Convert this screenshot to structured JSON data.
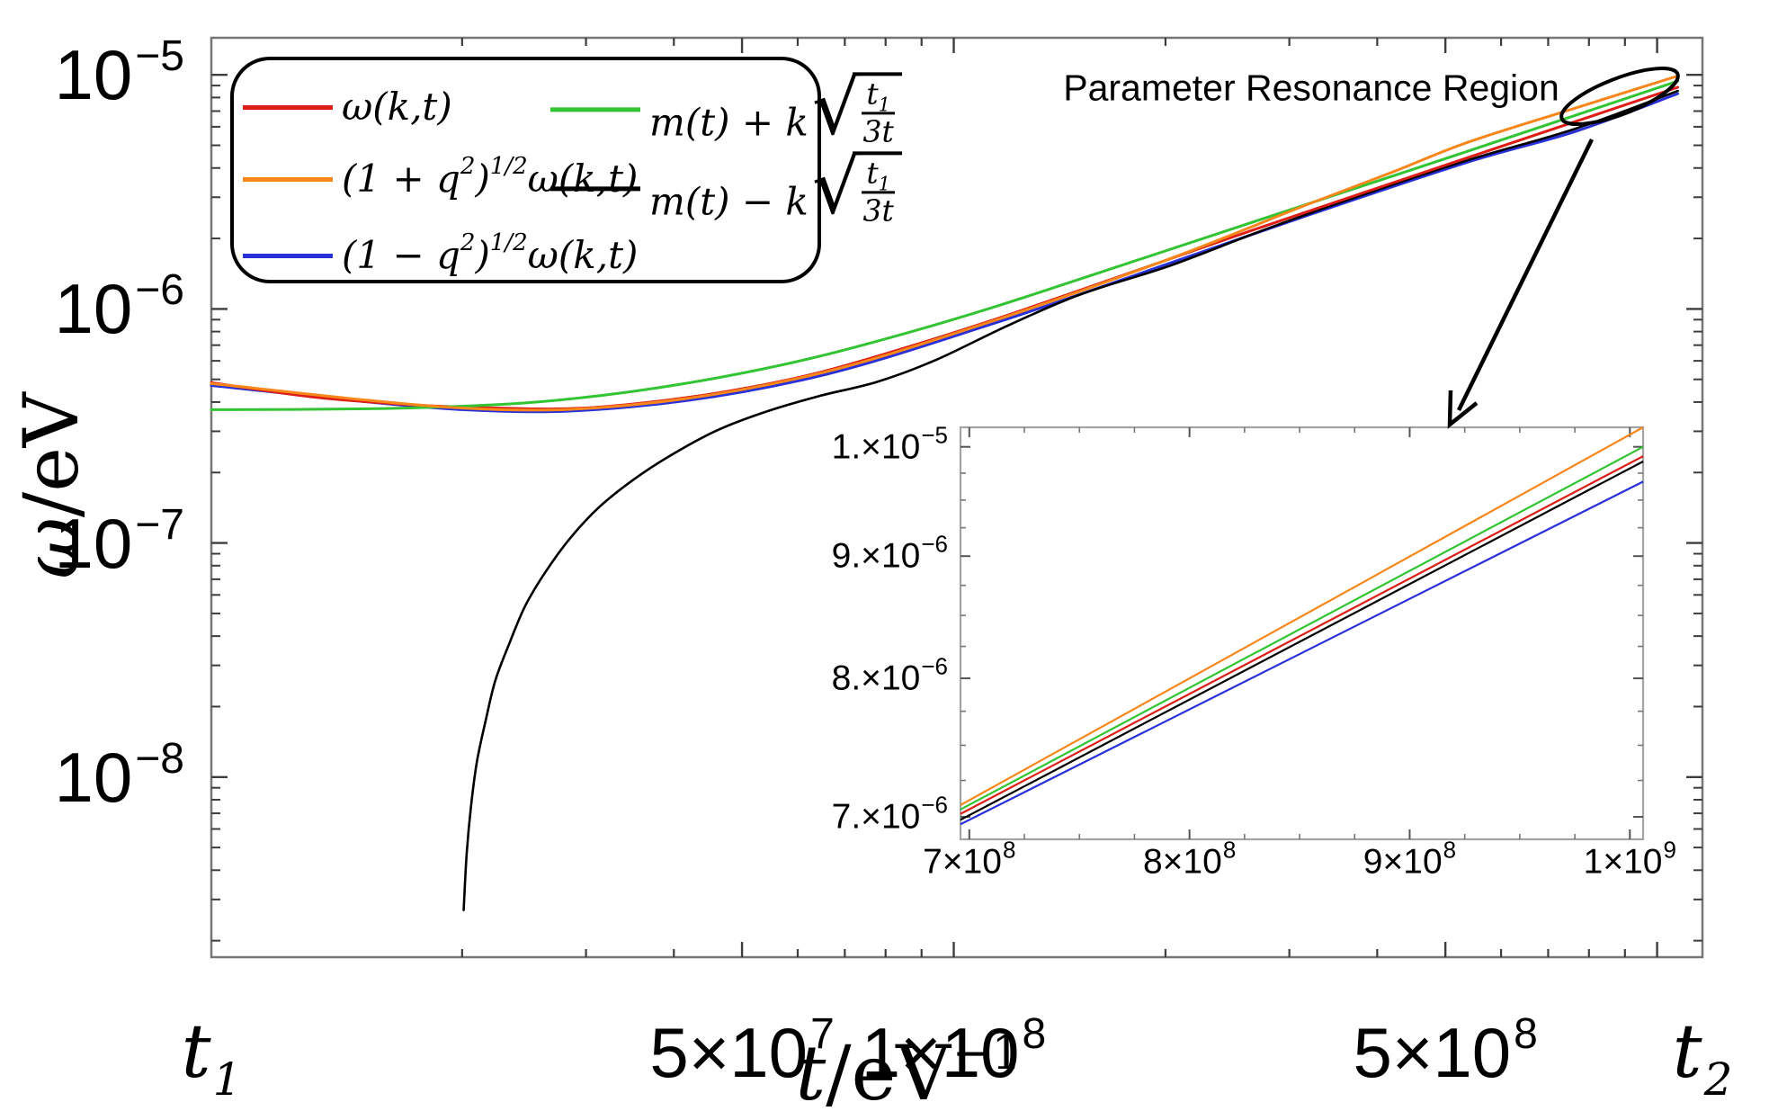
{
  "annotation": {
    "text": "Parameter Resonance Region"
  },
  "axes": {
    "x": {
      "sym": "t",
      "unit": "/eV",
      "sup": "−1"
    },
    "y": {
      "sym": "ω",
      "unit": "/eV"
    }
  },
  "colors": {
    "red": "#dc1e17",
    "orange": "#f8871b",
    "blue": "#2930d8",
    "green": "#33c433",
    "black": "#000000",
    "frame": "#777777",
    "tick": "#3d3d3d",
    "inset_frame": "#a3a3a3",
    "text": "#111111"
  },
  "legend": {
    "items": [
      {
        "name": "omega",
        "color_key": "red",
        "label": "ω(k,t)"
      },
      {
        "name": "omega-plus",
        "color_key": "orange",
        "open": "(1 + q",
        "exp": "2",
        "close": ")",
        "pow": "1/2",
        "tail": "ω(k,t)"
      },
      {
        "name": "omega-minus",
        "color_key": "blue",
        "open": "(1 − q",
        "exp": "2",
        "close": ")",
        "pow": "1/2",
        "tail": "ω(k,t)"
      },
      {
        "name": "m-plus",
        "color_key": "green",
        "pre": "m(t) + k",
        "num": "t",
        "numsub": "1",
        "den": "3t"
      },
      {
        "name": "m-minus",
        "color_key": "black",
        "pre": "m(t) − k",
        "num": "t",
        "numsub": "1",
        "den": "3t"
      }
    ]
  },
  "chart_data": {
    "type": "line",
    "title": "",
    "xlabel": "t/eV^-1",
    "ylabel": "ω/eV",
    "main": {
      "xscale": "log",
      "yscale": "log",
      "xlim": [
        8800000.0,
        1160000000.0
      ],
      "ylim": [
        1.7e-09,
        1.44e-05
      ],
      "xticks": [
        {
          "v": 8800000.0,
          "base": "t",
          "sub": "1",
          "serif": true
        },
        {
          "v": 50000000.0,
          "base": "5×10",
          "exp": "7"
        },
        {
          "v": 100000000.0,
          "base": "1×10",
          "exp": "8"
        },
        {
          "v": 500000000.0,
          "base": "5×10",
          "exp": "8"
        },
        {
          "v": 1160000000.0,
          "base": "t",
          "sub": "2",
          "serif": true
        }
      ],
      "yticks": [
        {
          "v": 1e-05,
          "base": "10",
          "exp": "−5"
        },
        {
          "v": 1e-06,
          "base": "10",
          "exp": "−6"
        },
        {
          "v": 1e-07,
          "base": "10",
          "exp": "−7"
        },
        {
          "v": 1e-08,
          "base": "10",
          "exp": "−8"
        }
      ],
      "series": [
        {
          "name": "omega",
          "color": "red",
          "points": [
            [
              8800000.0,
              4.84e-07
            ],
            [
              12300000.0,
              4.2e-07
            ],
            [
              16600000.0,
              3.91e-07
            ],
            [
              20000000.0,
              3.81e-07
            ],
            [
              27300000.0,
              3.74e-07
            ],
            [
              34600000.0,
              3.91e-07
            ],
            [
              46500000.0,
              4.39e-07
            ],
            [
              62500000.0,
              5.23e-07
            ],
            [
              83800000.0,
              6.71e-07
            ],
            [
              113000000.0,
              8.91e-07
            ],
            [
              151000000.0,
              1.2e-06
            ],
            [
              272000000.0,
              2.22e-06
            ],
            [
              537000000.0,
              4.42e-06
            ],
            [
              1070000000.0,
              8.85e-06
            ]
          ]
        },
        {
          "name": "omega-plus",
          "color": "orange",
          "points": [
            [
              8800000.0,
              4.8e-07
            ],
            [
              20000000.0,
              3.77e-07
            ],
            [
              34600000.0,
              3.88e-07
            ],
            [
              62500000.0,
              5.19e-07
            ],
            [
              113000000.0,
              8.83e-07
            ],
            [
              203000000.0,
              1.64e-06
            ],
            [
              316000000.0,
              2.77e-06
            ],
            [
              424000000.0,
              3.88e-06
            ],
            [
              537000000.0,
              5.14e-06
            ],
            [
              764000000.0,
              7.2e-06
            ],
            [
              1070000000.0,
              9.89e-06
            ]
          ]
        },
        {
          "name": "omega-minus",
          "color": "blue",
          "points": [
            [
              8800000.0,
              4.71e-07
            ],
            [
              20000000.0,
              3.71e-07
            ],
            [
              34600000.0,
              3.81e-07
            ],
            [
              62500000.0,
              5.06e-07
            ],
            [
              113000000.0,
              8.6e-07
            ],
            [
              203000000.0,
              1.57e-06
            ],
            [
              316000000.0,
              2.49e-06
            ],
            [
              537000000.0,
              4.23e-06
            ],
            [
              764000000.0,
              5.72e-06
            ],
            [
              1070000000.0,
              8.31e-06
            ]
          ]
        },
        {
          "name": "m-plus",
          "color": "green",
          "points": [
            [
              8800000.0,
              3.71e-07
            ],
            [
              14300000.0,
              3.74e-07
            ],
            [
              20000000.0,
              3.84e-07
            ],
            [
              25800000.0,
              4.01e-07
            ],
            [
              34600000.0,
              4.42e-07
            ],
            [
              46500000.0,
              5.1e-07
            ],
            [
              62500000.0,
              6.14e-07
            ],
            [
              83800000.0,
              7.74e-07
            ],
            [
              113000000.0,
              1.01e-06
            ],
            [
              151000000.0,
              1.34e-06
            ],
            [
              272000000.0,
              2.4e-06
            ],
            [
              537000000.0,
              4.71e-06
            ],
            [
              1070000000.0,
              9.4e-06
            ]
          ]
        },
        {
          "name": "m-minus",
          "color": "black",
          "points": [
            [
              20100000.0,
              2.7e-09
            ],
            [
              20300000.0,
              4.7e-09
            ],
            [
              20600000.0,
              7.6e-09
            ],
            [
              21000000.0,
              1.17e-08
            ],
            [
              21600000.0,
              1.74e-08
            ],
            [
              22300000.0,
              2.59e-08
            ],
            [
              23400000.0,
              3.79e-08
            ],
            [
              24600000.0,
              5.4e-08
            ],
            [
              26300000.0,
              7.55e-08
            ],
            [
              28500000.0,
              1.05e-07
            ],
            [
              31300000.0,
              1.42e-07
            ],
            [
              35100000.0,
              1.87e-07
            ],
            [
              39700000.0,
              2.38e-07
            ],
            [
              46100000.0,
              3.03e-07
            ],
            [
              53800000.0,
              3.62e-07
            ],
            [
              64300000.0,
              4.24e-07
            ],
            [
              77800000.0,
              4.88e-07
            ],
            [
              94200000.0,
              6.04e-07
            ],
            [
              119000000.0,
              8.45e-07
            ],
            [
              151000000.0,
              1.15e-06
            ],
            [
              203000000.0,
              1.53e-06
            ],
            [
              272000000.0,
              2.14e-06
            ],
            [
              366000000.0,
              2.94e-06
            ],
            [
              537000000.0,
              4.31e-06
            ],
            [
              764000000.0,
              5.88e-06
            ],
            [
              1070000000.0,
              8.54e-06
            ]
          ]
        }
      ]
    },
    "inset": {
      "xscale": "linear",
      "yscale": "log",
      "xlim": [
        696000000.0,
        1006000000.0
      ],
      "ylim": [
        6.85e-06,
        1.019e-05
      ],
      "xticks": [
        {
          "v": 700000000.0,
          "base": "7×10",
          "exp": "8"
        },
        {
          "v": 800000000.0,
          "base": "8×10",
          "exp": "8"
        },
        {
          "v": 900000000.0,
          "base": "9×10",
          "exp": "8"
        },
        {
          "v": 1000000000.0,
          "base": "1×10",
          "exp": "9"
        }
      ],
      "yticks": [
        {
          "v": 1e-05,
          "base": "1.×10",
          "exp": "−5"
        },
        {
          "v": 9e-06,
          "base": "9.×10",
          "exp": "−6"
        },
        {
          "v": 8e-06,
          "base": "8.×10",
          "exp": "−6"
        },
        {
          "v": 7e-06,
          "base": "7.×10",
          "exp": "−6"
        }
      ],
      "series": [
        {
          "name": "omega",
          "color": "red",
          "points": [
            [
              696000000.0,
              7.02e-06
            ],
            [
              1006000000.0,
              9.91e-06
            ]
          ]
        },
        {
          "name": "omega-plus",
          "color": "orange",
          "points": [
            [
              696000000.0,
              7.08e-06
            ],
            [
              1006000000.0,
              1.019e-05
            ]
          ]
        },
        {
          "name": "omega-minus",
          "color": "blue",
          "points": [
            [
              696000000.0,
              6.95e-06
            ],
            [
              1006000000.0,
              9.67e-06
            ]
          ]
        },
        {
          "name": "m-plus",
          "color": "green",
          "points": [
            [
              696000000.0,
              7.05e-06
            ],
            [
              1006000000.0,
              1e-05
            ]
          ]
        },
        {
          "name": "m-minus",
          "color": "black",
          "points": [
            [
              696000000.0,
              6.98e-06
            ],
            [
              1006000000.0,
              9.86e-06
            ]
          ]
        }
      ]
    }
  }
}
